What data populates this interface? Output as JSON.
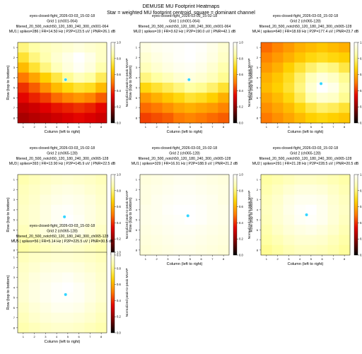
{
  "figure": {
    "title": "DEMUSE MU Footprint Heatmaps",
    "subtitle": "Star = weighted MU footprint centroid, square = dominant channel"
  },
  "colorbar": {
    "label": "Normalized peak-to-peak MUAP",
    "ticks": [
      "0.0",
      "0.2",
      "0.4",
      "0.6",
      "0.8",
      "1.0"
    ]
  },
  "colormap": [
    "#000000",
    "#7a0000",
    "#e30000",
    "#ff7a00",
    "#ffd400",
    "#ffffa0",
    "#ffffff"
  ],
  "marker_color": "#33d6ff",
  "chart_data": [
    {
      "type": "heatmap",
      "title_lines": [
        "eyes-closed-fight_2026-03-03_15-02-18",
        "Grid 1 (ch001-064)",
        "filtered_20_500_notch50_120_180_240_300_ch001-064",
        "MU1 | spikes=286 | FR=14.50 Hz | P2P=123.5 uV | PNR=26.1 dB"
      ],
      "xlabel": "Column (left to right)",
      "ylabel": "Row (top to bottom)",
      "x_ticks": [
        "1",
        "2",
        "3",
        "4",
        "5",
        "6",
        "7",
        "8"
      ],
      "y_ticks": [
        "1",
        "2",
        "3",
        "4",
        "5",
        "6",
        "7",
        "8"
      ],
      "centroid": [
        4.8,
        4.2
      ],
      "values": [
        [
          0.8,
          0.85,
          0.88,
          0.9,
          0.92,
          0.94,
          0.92,
          0.9
        ],
        [
          0.72,
          0.8,
          0.86,
          0.92,
          0.96,
          1.0,
          0.96,
          0.9
        ],
        [
          0.62,
          0.72,
          0.8,
          0.88,
          0.94,
          0.98,
          0.94,
          0.86
        ],
        [
          0.5,
          0.58,
          0.66,
          0.74,
          0.82,
          0.88,
          0.84,
          0.76
        ],
        [
          0.4,
          0.46,
          0.54,
          0.62,
          0.68,
          0.72,
          0.7,
          0.62
        ],
        [
          0.34,
          0.38,
          0.42,
          0.48,
          0.52,
          0.55,
          0.52,
          0.46
        ],
        [
          0.28,
          0.3,
          0.33,
          0.36,
          0.38,
          0.4,
          0.38,
          0.34
        ],
        [
          0.24,
          0.26,
          0.28,
          0.3,
          0.32,
          0.34,
          0.32,
          0.3
        ]
      ]
    },
    {
      "type": "heatmap",
      "title_lines": [
        "eyes-closed-fight_2026-03-03_15-02-18",
        "Grid 1 (ch001-064)",
        "filtered_20_500_notch50_120_180_240_300_ch001-064",
        "MU2 | spikes=19 | FR=3.62 Hz | P2P=190.0 uV | PNR=42.1 dB"
      ],
      "xlabel": "Column (left to right)",
      "ylabel": "Row (top to bottom)",
      "x_ticks": [
        "1",
        "2",
        "3",
        "4",
        "5",
        "6",
        "7",
        "8"
      ],
      "y_ticks": [
        "1",
        "2",
        "3",
        "4",
        "5",
        "6",
        "7",
        "8"
      ],
      "centroid": [
        4.9,
        4.2
      ],
      "values": [
        [
          0.95,
          0.97,
          0.98,
          0.99,
          1.0,
          0.99,
          0.96,
          0.92
        ],
        [
          0.92,
          0.95,
          0.97,
          0.99,
          1.0,
          0.98,
          0.95,
          0.9
        ],
        [
          0.88,
          0.92,
          0.95,
          0.97,
          0.98,
          0.96,
          0.92,
          0.86
        ],
        [
          0.8,
          0.84,
          0.88,
          0.92,
          0.94,
          0.92,
          0.88,
          0.82
        ],
        [
          0.68,
          0.72,
          0.76,
          0.8,
          0.84,
          0.82,
          0.78,
          0.72
        ],
        [
          0.56,
          0.6,
          0.64,
          0.68,
          0.72,
          0.7,
          0.66,
          0.6
        ],
        [
          0.48,
          0.5,
          0.54,
          0.58,
          0.6,
          0.58,
          0.56,
          0.52
        ],
        [
          0.42,
          0.44,
          0.46,
          0.5,
          0.52,
          0.5,
          0.48,
          0.46
        ]
      ]
    },
    {
      "type": "heatmap",
      "title_lines": [
        "eyes-closed-fight_2026-03-03_15-02-18",
        "Grid 2 (ch065-128)",
        "filtered_20_500_notch50_120_180_240_300_ch065-128",
        "MU4 | spikes=640 | FR=18.69 Hz | P2P=177.4 uV | PNR=23.7 dB"
      ],
      "xlabel": "Column (left to right)",
      "ylabel": "Row (top to bottom)",
      "x_ticks": [
        "1",
        "2",
        "3",
        "4",
        "5",
        "6",
        "7",
        "8"
      ],
      "y_ticks": [
        "1",
        "2",
        "3",
        "4",
        "5",
        "6",
        "7",
        "8"
      ],
      "centroid": [
        5.9,
        4.6
      ],
      "values": [
        [
          0.48,
          0.52,
          0.56,
          0.6,
          0.62,
          0.64,
          0.62,
          0.6
        ],
        [
          0.52,
          0.56,
          0.6,
          0.64,
          0.68,
          0.7,
          0.68,
          0.66
        ],
        [
          0.56,
          0.6,
          0.66,
          0.72,
          0.78,
          0.82,
          0.8,
          0.74
        ],
        [
          0.6,
          0.64,
          0.7,
          0.78,
          0.88,
          0.94,
          0.9,
          0.82
        ],
        [
          0.62,
          0.66,
          0.72,
          0.8,
          0.92,
          1.0,
          0.96,
          0.86
        ],
        [
          0.58,
          0.62,
          0.68,
          0.76,
          0.86,
          0.92,
          0.9,
          0.82
        ],
        [
          0.54,
          0.58,
          0.62,
          0.68,
          0.74,
          0.78,
          0.76,
          0.72
        ],
        [
          0.5,
          0.54,
          0.58,
          0.62,
          0.66,
          0.68,
          0.66,
          0.64
        ]
      ]
    },
    {
      "type": "heatmap",
      "title_lines": [
        "eyes-closed-fight_2026-03-03_15-02-18",
        "Grid 2 (ch065-128)",
        "filtered_20_500_notch50_120_180_240_300_ch065-128",
        "MU3 | spikes=393 | FR=13.90 Hz | P2P=145.9 uV | PNR=22.5 dB"
      ],
      "xlabel": "Column (left to right)",
      "ylabel": "Row (top to bottom)",
      "x_ticks": [
        "1",
        "2",
        "3",
        "4",
        "5",
        "6",
        "7",
        "8"
      ],
      "y_ticks": [
        "1",
        "2",
        "3",
        "4",
        "5",
        "6",
        "7",
        "8"
      ],
      "centroid": [
        4.7,
        4.7
      ],
      "values": [
        [
          0.86,
          0.88,
          0.9,
          0.91,
          0.92,
          0.91,
          0.9,
          0.88
        ],
        [
          0.88,
          0.9,
          0.92,
          0.94,
          0.95,
          0.94,
          0.92,
          0.9
        ],
        [
          0.89,
          0.91,
          0.94,
          0.96,
          0.97,
          0.96,
          0.94,
          0.91
        ],
        [
          0.9,
          0.92,
          0.95,
          0.98,
          0.99,
          0.97,
          0.95,
          0.92
        ],
        [
          0.9,
          0.92,
          0.95,
          0.98,
          1.0,
          0.98,
          0.95,
          0.92
        ],
        [
          0.88,
          0.91,
          0.94,
          0.96,
          0.97,
          0.96,
          0.93,
          0.9
        ],
        [
          0.86,
          0.88,
          0.91,
          0.93,
          0.94,
          0.93,
          0.91,
          0.88
        ],
        [
          0.84,
          0.86,
          0.88,
          0.9,
          0.91,
          0.9,
          0.88,
          0.86
        ]
      ]
    },
    {
      "type": "heatmap",
      "title_lines": [
        "eyes-closed-fight_2026-03-03_15-02-18",
        "Grid 2 (ch065-128)",
        "filtered_20_500_notch50_120_180_240_300_ch065-128",
        "MU1 | spikes=329 | FR=16.91 Hz | P2P=188.9 uV | PNR=21.2 dB"
      ],
      "xlabel": "Column (left to right)",
      "ylabel": "Row (top to bottom)",
      "x_ticks": [
        "1",
        "2",
        "3",
        "4",
        "5",
        "6",
        "7",
        "8"
      ],
      "y_ticks": [
        "1",
        "2",
        "3",
        "4",
        "5",
        "6",
        "7",
        "8"
      ],
      "centroid": [
        4.8,
        4.6
      ],
      "values": [
        [
          0.94,
          0.95,
          0.96,
          0.97,
          0.97,
          0.96,
          0.95,
          0.94
        ],
        [
          0.95,
          0.96,
          0.97,
          0.98,
          0.98,
          0.97,
          0.96,
          0.95
        ],
        [
          0.95,
          0.97,
          0.98,
          0.99,
          0.99,
          0.98,
          0.97,
          0.95
        ],
        [
          0.96,
          0.97,
          0.99,
          1.0,
          1.0,
          0.99,
          0.97,
          0.96
        ],
        [
          0.96,
          0.97,
          0.98,
          0.99,
          1.0,
          0.99,
          0.97,
          0.96
        ],
        [
          0.95,
          0.96,
          0.97,
          0.98,
          0.98,
          0.97,
          0.96,
          0.95
        ],
        [
          0.94,
          0.95,
          0.96,
          0.97,
          0.97,
          0.96,
          0.95,
          0.94
        ],
        [
          0.93,
          0.94,
          0.95,
          0.96,
          0.96,
          0.95,
          0.94,
          0.93
        ]
      ]
    },
    {
      "type": "heatmap",
      "title_lines": [
        "eyes-closed-fight_2026-03-03_15-02-18",
        "Grid 2 (ch065-128)",
        "filtered_20_500_notch50_120_180_240_300_ch065-128",
        "MU2 | spikes=291 | FR=21.28 Hz | P2P=228.5 uV | PNR=20.5 dB"
      ],
      "xlabel": "Column (left to right)",
      "ylabel": "Row (top to bottom)",
      "x_ticks": [
        "1",
        "2",
        "3",
        "4",
        "5",
        "6",
        "7",
        "8"
      ],
      "y_ticks": [
        "1",
        "2",
        "3",
        "4",
        "5",
        "6",
        "7",
        "8"
      ],
      "centroid": [
        4.6,
        4.5
      ],
      "values": [
        [
          0.84,
          0.86,
          0.88,
          0.9,
          0.9,
          0.89,
          0.87,
          0.85
        ],
        [
          0.86,
          0.89,
          0.92,
          0.94,
          0.94,
          0.93,
          0.9,
          0.87
        ],
        [
          0.88,
          0.91,
          0.95,
          0.97,
          0.97,
          0.96,
          0.92,
          0.89
        ],
        [
          0.89,
          0.92,
          0.96,
          0.99,
          1.0,
          0.97,
          0.93,
          0.9
        ],
        [
          0.88,
          0.92,
          0.95,
          0.98,
          0.99,
          0.97,
          0.93,
          0.89
        ],
        [
          0.86,
          0.9,
          0.93,
          0.95,
          0.96,
          0.94,
          0.91,
          0.87
        ],
        [
          0.84,
          0.87,
          0.9,
          0.92,
          0.92,
          0.91,
          0.88,
          0.85
        ],
        [
          0.82,
          0.84,
          0.87,
          0.89,
          0.89,
          0.88,
          0.86,
          0.83
        ]
      ]
    },
    {
      "type": "heatmap",
      "title_lines": [
        "eyes-closed-fight_2026-03-03_15-02-18",
        "Grid 2 (ch065-128)",
        "filtered_20_500_notch50_120_180_240_300_ch065-128",
        "MU5 | spikes=56 | FR=5.14 Hz | P2P=225.5 uV | PNR=30.5 dB"
      ],
      "xlabel": "Column (left to right)",
      "ylabel": "Row (top to bottom)",
      "x_ticks": [
        "1",
        "2",
        "3",
        "4",
        "5",
        "6",
        "7",
        "8"
      ],
      "y_ticks": [
        "1",
        "2",
        "3",
        "4",
        "5",
        "6",
        "7",
        "8"
      ],
      "centroid": [
        4.8,
        4.7
      ],
      "values": [
        [
          0.88,
          0.9,
          0.91,
          0.92,
          0.92,
          0.91,
          0.9,
          0.88
        ],
        [
          0.9,
          0.92,
          0.94,
          0.95,
          0.95,
          0.94,
          0.92,
          0.9
        ],
        [
          0.91,
          0.94,
          0.96,
          0.97,
          0.98,
          0.96,
          0.94,
          0.91
        ],
        [
          0.92,
          0.95,
          0.97,
          0.99,
          1.0,
          0.98,
          0.95,
          0.92
        ],
        [
          0.92,
          0.95,
          0.97,
          0.99,
          0.99,
          0.98,
          0.95,
          0.92
        ],
        [
          0.9,
          0.93,
          0.95,
          0.97,
          0.97,
          0.96,
          0.93,
          0.9
        ],
        [
          0.88,
          0.91,
          0.93,
          0.94,
          0.94,
          0.93,
          0.91,
          0.88
        ],
        [
          0.86,
          0.88,
          0.9,
          0.91,
          0.91,
          0.9,
          0.88,
          0.86
        ]
      ]
    }
  ]
}
